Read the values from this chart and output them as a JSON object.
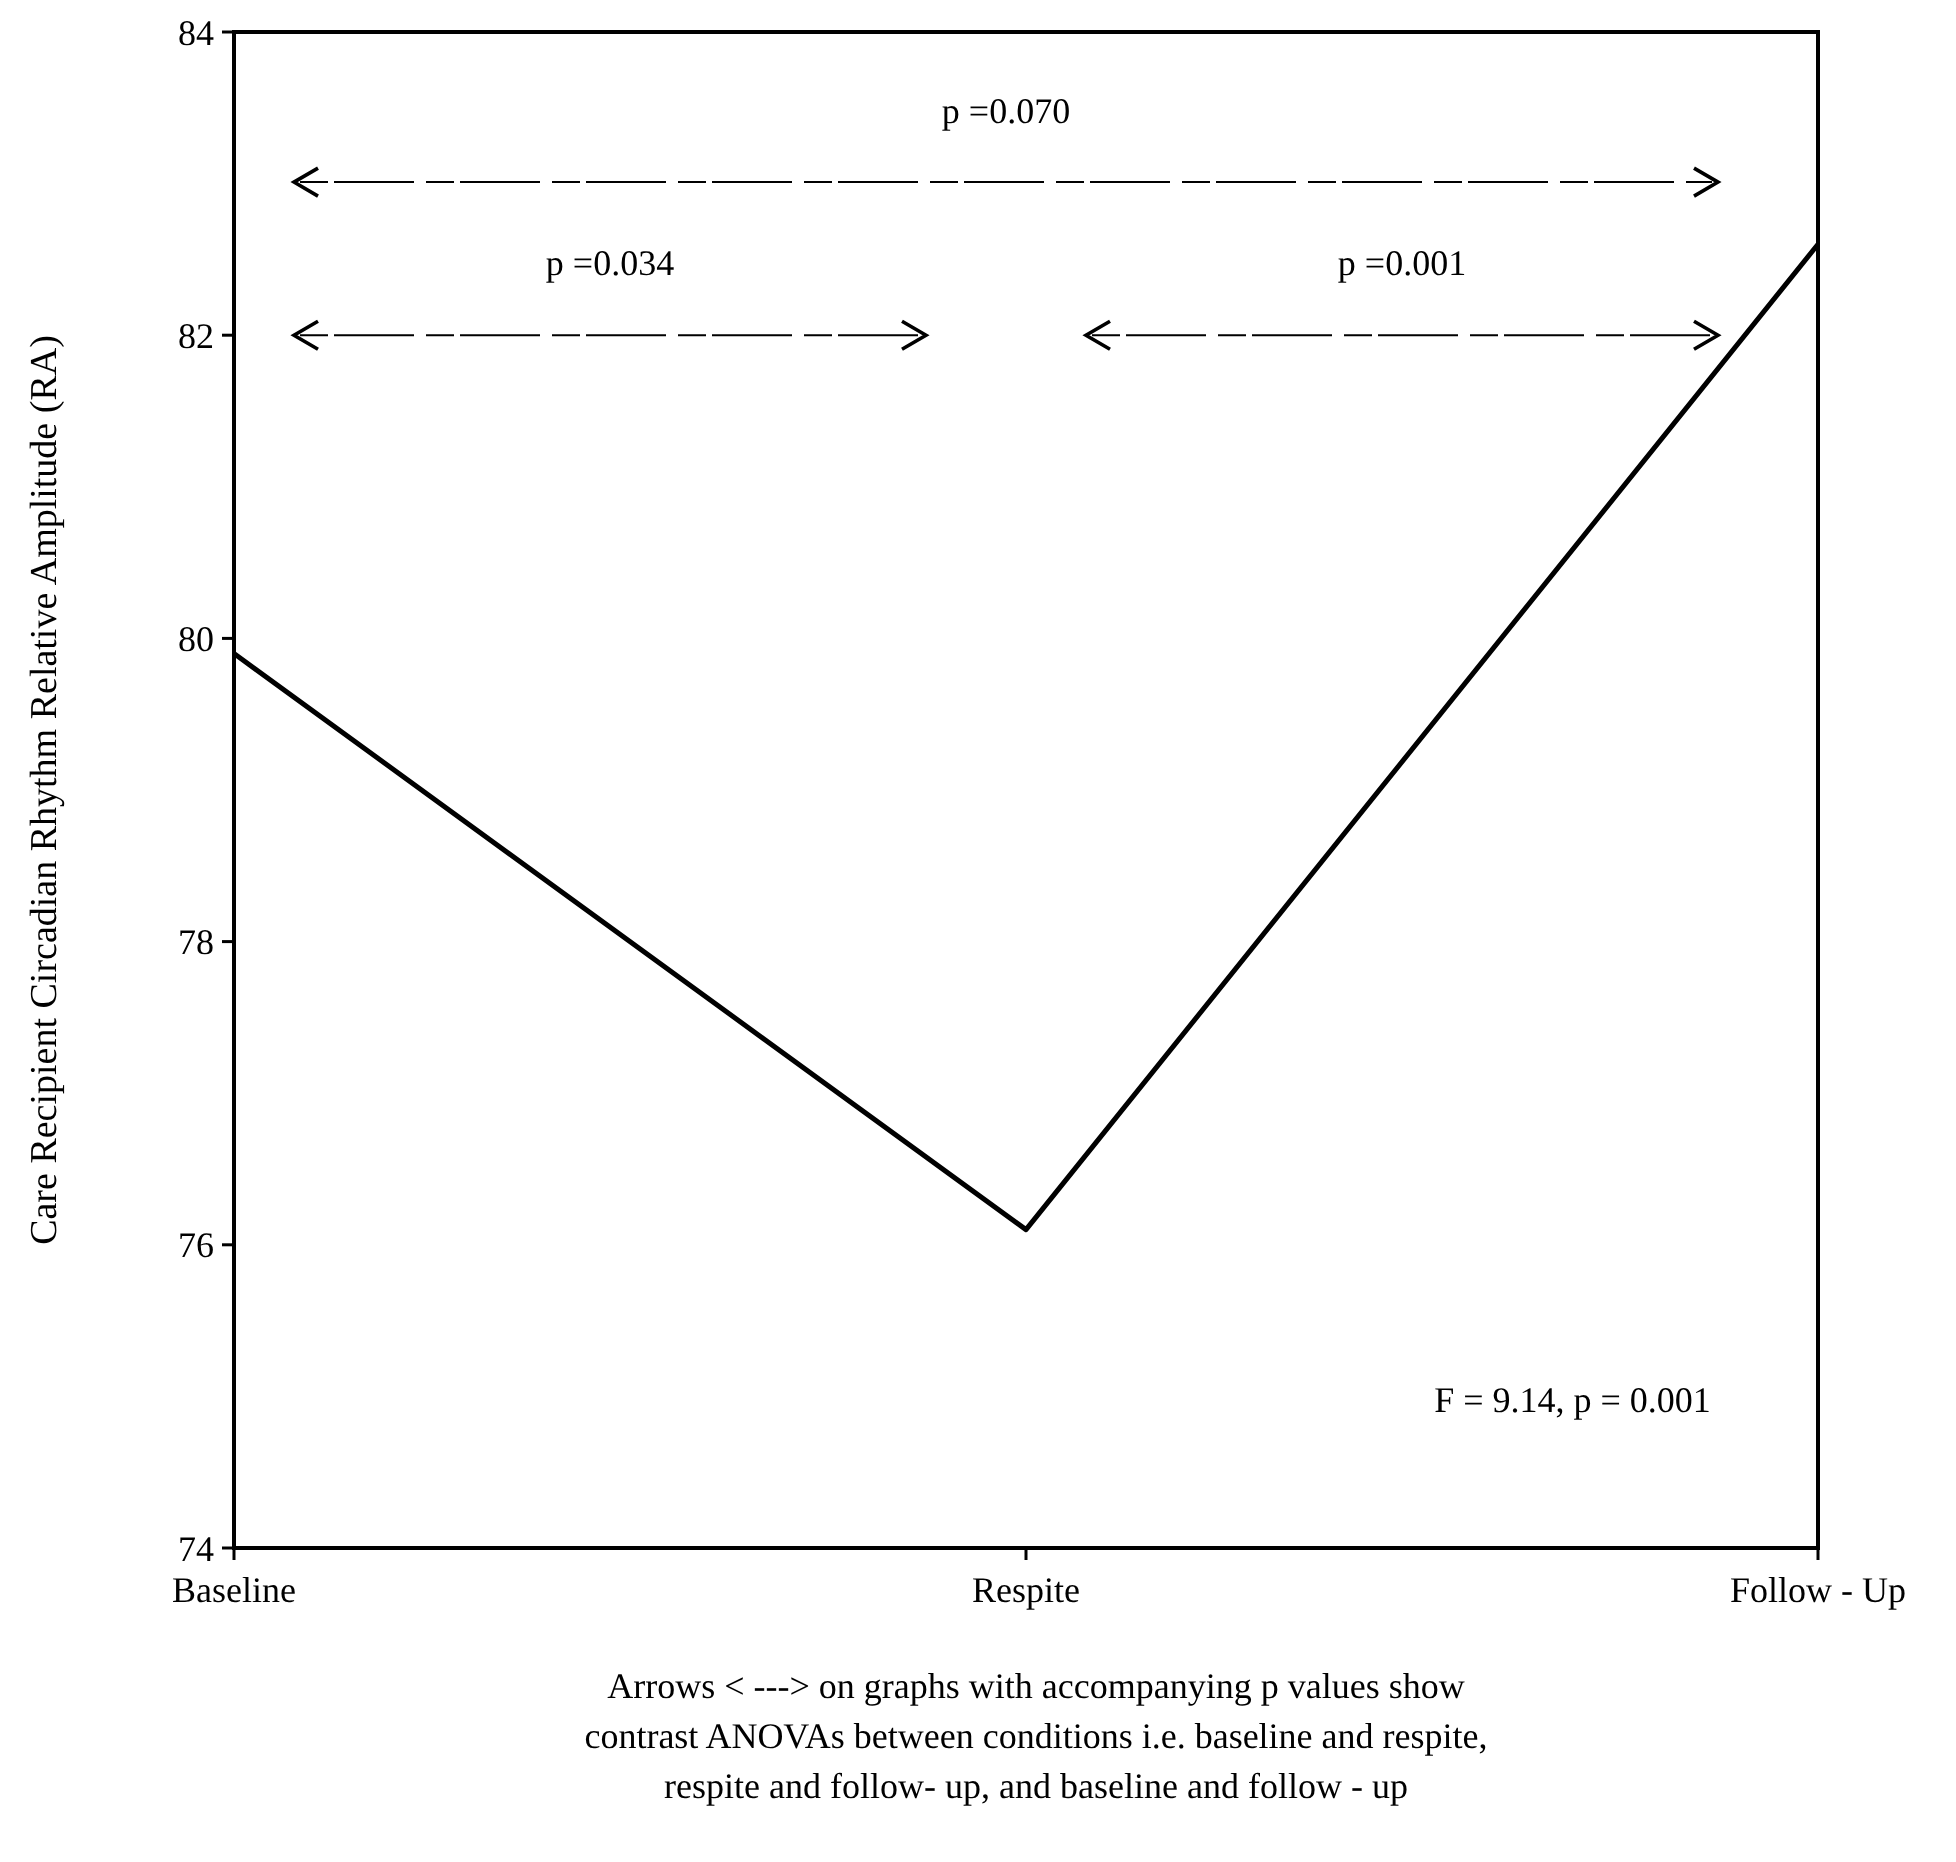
{
  "chart_data": {
    "type": "line",
    "ylabel": "Care Recipient Circadian Rhythm Relative Amplitude (RA)",
    "categories": [
      "Baseline",
      "Respite",
      "Follow - Up"
    ],
    "series": [
      {
        "color": "#000000",
        "values": [
          79.9,
          76.1,
          82.6
        ]
      }
    ],
    "ylim": [
      74,
      84
    ],
    "yticks": [
      74,
      76,
      78,
      80,
      82,
      84
    ],
    "marker": "none",
    "line_style": "solid",
    "annotations": [
      "p =0.070",
      "p =0.034",
      "p =0.001",
      "F = 9.14, p = 0.001",
      "Arrows <   ---> on graphs with accompanying p values show contrast ANOVAs between conditions i.e. baseline and respite, respite and follow- up, and baseline and follow - up"
    ]
  }
}
